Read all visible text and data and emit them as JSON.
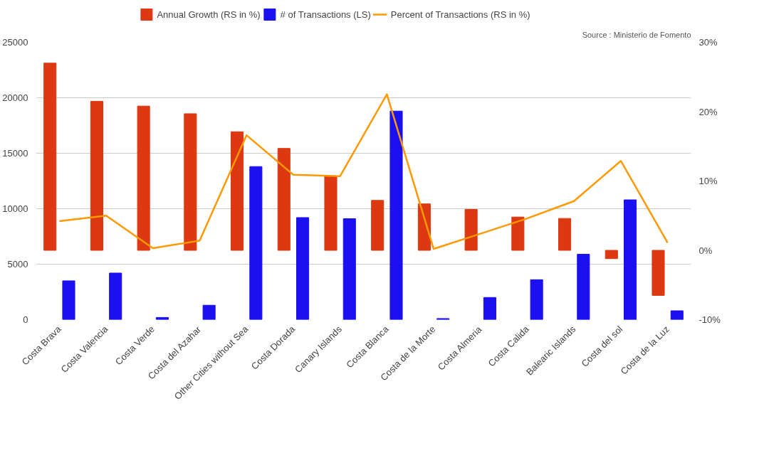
{
  "chart_data": {
    "type": "bar",
    "categories": [
      "Costa Brava",
      "Costa Valencia",
      "Costa Verde",
      "Costa del Azahar",
      "Other Cities without Sea",
      "Costa Dorada",
      "Canary Islands",
      "Costa Blanca",
      "Costa de la Morte",
      "Costa Almeria",
      "Costa Calida",
      "Balearic Islands",
      "Costa del sol",
      "Costa de la Luz"
    ],
    "series": [
      {
        "name": "Annual Growth (RS in %)",
        "color": "#dc3912",
        "axis": "y2",
        "values": [
          27.0,
          21.5,
          20.8,
          19.7,
          17.1,
          14.7,
          10.7,
          7.2,
          6.7,
          5.9,
          4.8,
          4.6,
          -1.2,
          -6.5
        ]
      },
      {
        "name": "# of Transactions (LS)",
        "color": "#1a10f0",
        "values": [
          3500,
          4200,
          200,
          1300,
          13800,
          9200,
          9100,
          18800,
          100,
          2000,
          3600,
          5900,
          10800,
          800
        ]
      },
      {
        "name": "Percent of Transactions (RS in %)",
        "color": "#ff9900",
        "type": "line",
        "axis": "y2",
        "values": [
          4.2,
          5.0,
          0.3,
          1.4,
          16.6,
          10.9,
          10.7,
          22.5,
          0.2,
          2.4,
          4.6,
          7.1,
          12.9,
          1.1
        ]
      }
    ],
    "ylim": [
      0,
      25000
    ],
    "yticks": [
      0,
      5000,
      10000,
      15000,
      20000,
      25000
    ],
    "y2lim": [
      -10,
      30
    ],
    "y2ticks": [
      {
        "value": -10,
        "label": "-10%"
      },
      {
        "value": 0,
        "label": "0%"
      },
      {
        "value": 10,
        "label": "10%"
      },
      {
        "value": 20,
        "label": "20%"
      },
      {
        "value": 30,
        "label": "30%"
      }
    ],
    "grid": "y",
    "legend": "top",
    "annotations": [
      "Source : Ministerio de Fomento"
    ]
  }
}
